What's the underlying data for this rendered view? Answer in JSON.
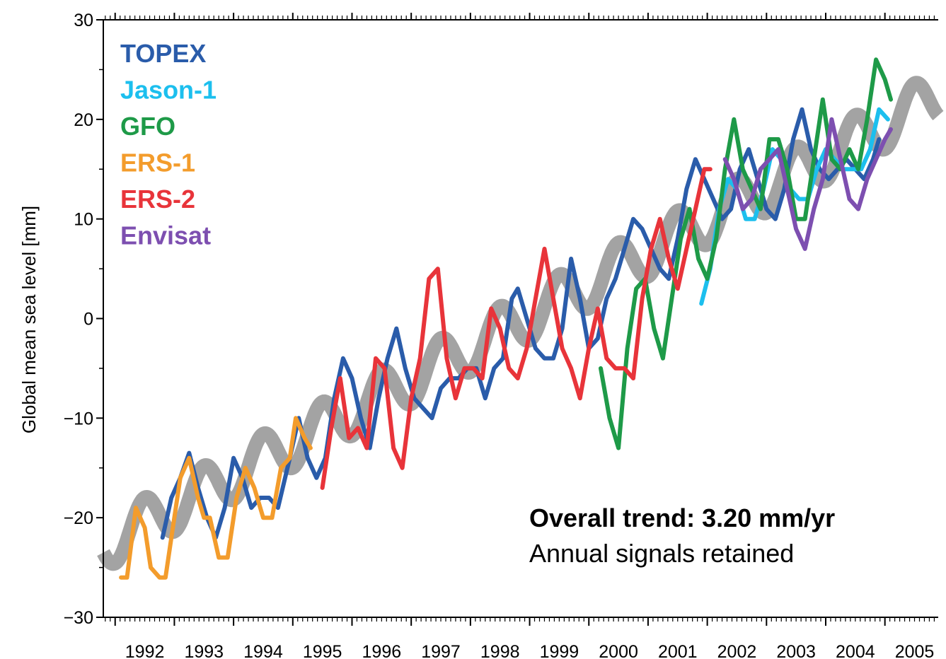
{
  "chart_data": {
    "type": "line",
    "ylabel": "Global mean sea level [mm]",
    "xlabel": "",
    "title": "",
    "xlim": [
      1991.8,
      2005.9
    ],
    "ylim": [
      -30,
      30
    ],
    "yticks": [
      -30,
      -20,
      -10,
      0,
      10,
      20,
      30
    ],
    "xticks": [
      1992,
      1993,
      1994,
      1995,
      1996,
      1997,
      1998,
      1999,
      2000,
      2001,
      2002,
      2003,
      2004,
      2005
    ],
    "legend_position": "top-left",
    "grid": false,
    "annotations": [
      "Overall trend: 3.20 mm/yr",
      "Annual signals retained"
    ],
    "colors": {
      "TOPEX": "#2a5caa",
      "Jason-1": "#1cbfee",
      "GFO": "#1e9a48",
      "ERS-1": "#f39c2c",
      "ERS-2": "#e8343a",
      "Envisat": "#7d4fb0",
      "trend": "#a3a3a3"
    },
    "series": [
      {
        "name": "TOPEX",
        "x": [
          1992.8,
          1992.95,
          1993.1,
          1993.25,
          1993.4,
          1993.55,
          1993.7,
          1993.85,
          1994.0,
          1994.15,
          1994.3,
          1994.45,
          1994.6,
          1994.75,
          1994.95,
          1995.1,
          1995.25,
          1995.4,
          1995.55,
          1995.7,
          1995.85,
          1996.0,
          1996.15,
          1996.3,
          1996.45,
          1996.6,
          1996.75,
          1996.9,
          1997.05,
          1997.2,
          1997.35,
          1997.5,
          1997.65,
          1997.8,
          1997.95,
          1998.1,
          1998.25,
          1998.4,
          1998.55,
          1998.7,
          1998.8,
          1998.95,
          1999.1,
          1999.25,
          1999.4,
          1999.55,
          1999.7,
          1999.85,
          2000.0,
          2000.15,
          2000.3,
          2000.45,
          2000.6,
          2000.75,
          2000.9,
          2001.05,
          2001.2,
          2001.35,
          2001.5,
          2001.65,
          2001.8,
          2001.95,
          2002.1,
          2002.25,
          2002.4,
          2002.55,
          2002.7,
          2002.85,
          2003.0,
          2003.15,
          2003.3,
          2003.45,
          2003.6,
          2003.75,
          2003.9,
          2004.05,
          2004.2,
          2004.35,
          2004.5,
          2004.65,
          2004.8,
          2004.9
        ],
        "y": [
          -22,
          -18,
          -16,
          -13.5,
          -17,
          -20,
          -22,
          -19,
          -14,
          -16,
          -19,
          -18,
          -18,
          -19,
          -14,
          -10,
          -14,
          -16,
          -14,
          -8,
          -4,
          -6,
          -10,
          -13,
          -8,
          -4,
          -1,
          -5,
          -8,
          -9,
          -10,
          -7,
          -6,
          -6,
          -5,
          -5,
          -8,
          -5,
          -4,
          2,
          3,
          0,
          -3,
          -4,
          -4,
          -1,
          6,
          2,
          -3,
          -2,
          2,
          4,
          7,
          10,
          9,
          7,
          5,
          4,
          8,
          13,
          16,
          14,
          12,
          10,
          11,
          15,
          17,
          14,
          11,
          10,
          13,
          18,
          21,
          17,
          15,
          14,
          15,
          16,
          15,
          14,
          16,
          18
        ]
      },
      {
        "name": "Jason-1",
        "x": [
          2001.9,
          2002.05,
          2002.2,
          2002.35,
          2002.5,
          2002.65,
          2002.8,
          2002.95,
          2003.1,
          2003.25,
          2003.4,
          2003.55,
          2003.7,
          2003.85,
          2004.0,
          2004.15,
          2004.3,
          2004.45,
          2004.6,
          2004.75,
          2004.9,
          2005.05
        ],
        "y": [
          1.5,
          5,
          11,
          14,
          13,
          10,
          10,
          13,
          17,
          16,
          13,
          12,
          12,
          15,
          17,
          16,
          15,
          15,
          15,
          17,
          21,
          20
        ]
      },
      {
        "name": "GFO",
        "x": [
          2000.2,
          2000.35,
          2000.5,
          2000.65,
          2000.8,
          2000.95,
          2001.1,
          2001.25,
          2001.4,
          2001.55,
          2001.7,
          2001.85,
          2002.0,
          2002.15,
          2002.3,
          2002.45,
          2002.6,
          2002.75,
          2002.9,
          2003.05,
          2003.2,
          2003.35,
          2003.5,
          2003.65,
          2003.8,
          2003.95,
          2004.1,
          2004.25,
          2004.4,
          2004.55,
          2004.7,
          2004.85,
          2005.0,
          2005.1
        ],
        "y": [
          -5,
          -10,
          -13,
          -3,
          3,
          4,
          -1,
          -4,
          2,
          8,
          11,
          6,
          4,
          8,
          15,
          20,
          15,
          13,
          11,
          18,
          18,
          15,
          10,
          10,
          16,
          22,
          16,
          15,
          17,
          15,
          20,
          26,
          24,
          22
        ]
      },
      {
        "name": "ERS-1",
        "x": [
          1992.1,
          1992.2,
          1992.35,
          1992.5,
          1992.6,
          1992.75,
          1992.85,
          1992.95,
          1993.1,
          1993.25,
          1993.4,
          1993.5,
          1993.6,
          1993.75,
          1993.9,
          1994.05,
          1994.2,
          1994.35,
          1994.5,
          1994.65,
          1994.8,
          1994.95,
          1995.05,
          1995.2,
          1995.3
        ],
        "y": [
          -26,
          -26,
          -19,
          -21,
          -25,
          -26,
          -26,
          -22,
          -16,
          -14,
          -18,
          -20,
          -20,
          -24,
          -24,
          -18,
          -15,
          -17,
          -20,
          -20,
          -15,
          -14,
          -10,
          -12,
          -13
        ]
      },
      {
        "name": "ERS-2",
        "x": [
          1995.5,
          1995.65,
          1995.8,
          1995.95,
          1996.1,
          1996.25,
          1996.4,
          1996.55,
          1996.7,
          1996.85,
          1997.0,
          1997.15,
          1997.3,
          1997.45,
          1997.6,
          1997.75,
          1997.9,
          1998.05,
          1998.2,
          1998.35,
          1998.5,
          1998.65,
          1998.8,
          1998.95,
          1999.1,
          1999.25,
          1999.4,
          1999.55,
          1999.7,
          1999.85,
          2000.0,
          2000.15,
          2000.3,
          2000.45,
          2000.6,
          2000.75,
          2000.9,
          2001.05,
          2001.2,
          2001.35,
          2001.5,
          2001.65,
          2001.8,
          2001.95,
          2002.05
        ],
        "y": [
          -17,
          -11,
          -6,
          -12,
          -11,
          -13,
          -4,
          -5,
          -13,
          -15,
          -8,
          -4,
          4,
          5,
          -4,
          -8,
          -5,
          -5,
          -6,
          1,
          -1,
          -5,
          -6,
          -3,
          2,
          7,
          2,
          -3,
          -5,
          -8,
          -3,
          1,
          -4,
          -5,
          -5,
          -6,
          2,
          7,
          10,
          6,
          3,
          7,
          11,
          15,
          15
        ]
      },
      {
        "name": "Envisat",
        "x": [
          2002.3,
          2002.45,
          2002.6,
          2002.75,
          2002.9,
          2003.05,
          2003.2,
          2003.35,
          2003.5,
          2003.65,
          2003.8,
          2003.95,
          2004.1,
          2004.25,
          2004.4,
          2004.55,
          2004.7,
          2004.85,
          2005.0,
          2005.1
        ],
        "y": [
          16,
          14,
          11,
          12,
          15,
          16,
          17,
          13,
          9,
          7,
          11,
          14,
          20,
          16,
          12,
          11,
          14,
          16,
          18,
          19
        ]
      }
    ]
  }
}
